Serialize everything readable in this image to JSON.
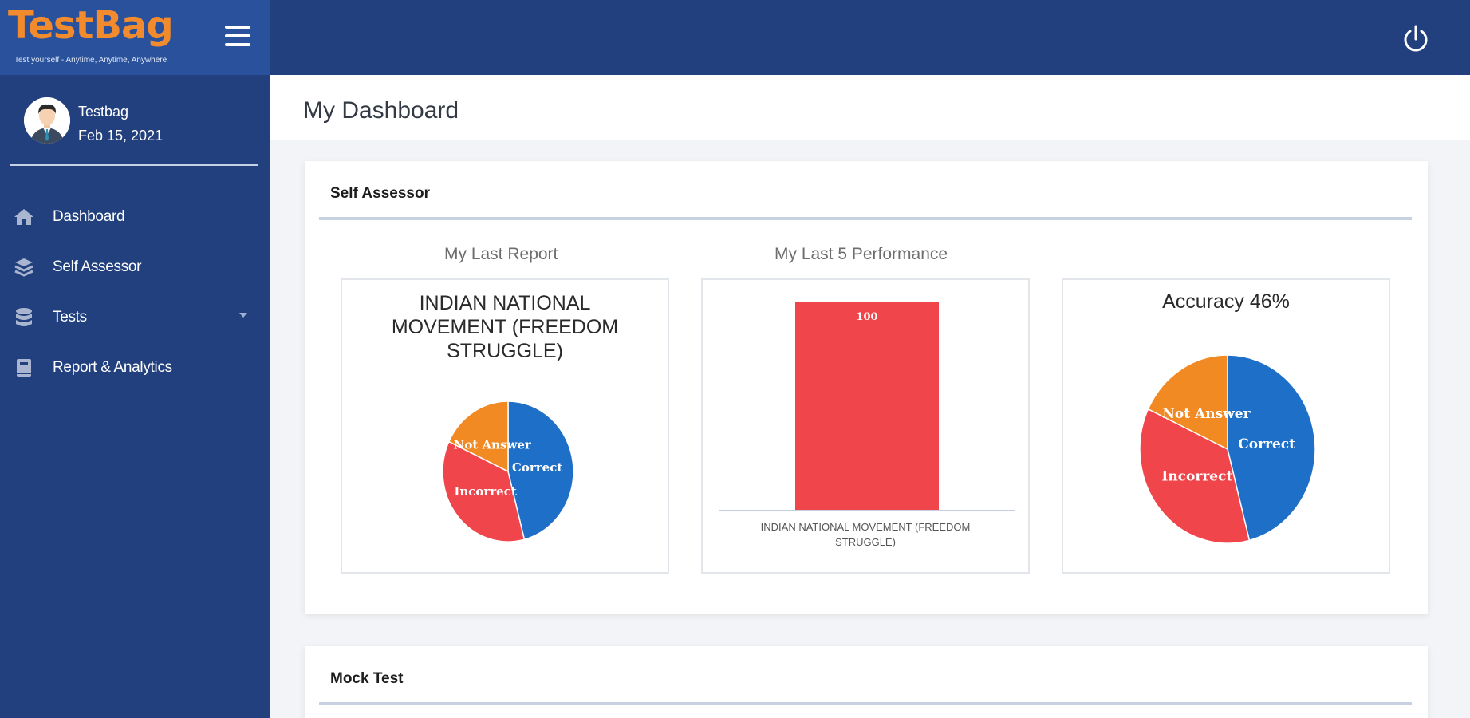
{
  "app": {
    "logo_text": "TestBag",
    "tagline": "Test yourself - Anytime, Anytime, Anywhere",
    "menu_icon": "hamburger-icon",
    "power_icon": "power-icon"
  },
  "user": {
    "name": "Testbag",
    "date": "Feb 15, 2021"
  },
  "sidebar": {
    "items": [
      {
        "label": "Dashboard",
        "icon": "home-icon"
      },
      {
        "label": "Self Assessor",
        "icon": "layers-icon"
      },
      {
        "label": "Tests",
        "icon": "database-icon",
        "has_dropdown": true
      },
      {
        "label": "Report & Analytics",
        "icon": "book-icon"
      }
    ]
  },
  "page": {
    "title": "My Dashboard"
  },
  "self_assessor": {
    "title": "Self Assessor",
    "last_report_label": "My Last Report",
    "last5_label": "My Last 5 Performance"
  },
  "mock_test": {
    "title": "Mock Test"
  },
  "colors": {
    "correct": "#1e6fc8",
    "incorrect": "#f0454a",
    "not_answer": "#f18a23",
    "header": "#22407d",
    "logo": "#f28a2e"
  },
  "chart_data": [
    {
      "type": "pie",
      "title": "INDIAN NATIONAL MOVEMENT (FREEDOM STRUGGLE)",
      "slices": [
        {
          "label": "Correct",
          "value": 46
        },
        {
          "label": "Incorrect",
          "value": 36
        },
        {
          "label": "Not Answer",
          "value": 18
        }
      ]
    },
    {
      "type": "bar",
      "categories": [
        "INDIAN NATIONAL MOVEMENT (FREEDOM STRUGGLE)"
      ],
      "values": [
        100
      ],
      "data_labels": [
        "100"
      ],
      "ylim": [
        0,
        100
      ]
    },
    {
      "type": "pie",
      "title": "Accuracy 46%",
      "slices": [
        {
          "label": "Correct",
          "value": 46
        },
        {
          "label": "Incorrect",
          "value": 36
        },
        {
          "label": "Not Answer",
          "value": 18
        }
      ]
    }
  ]
}
